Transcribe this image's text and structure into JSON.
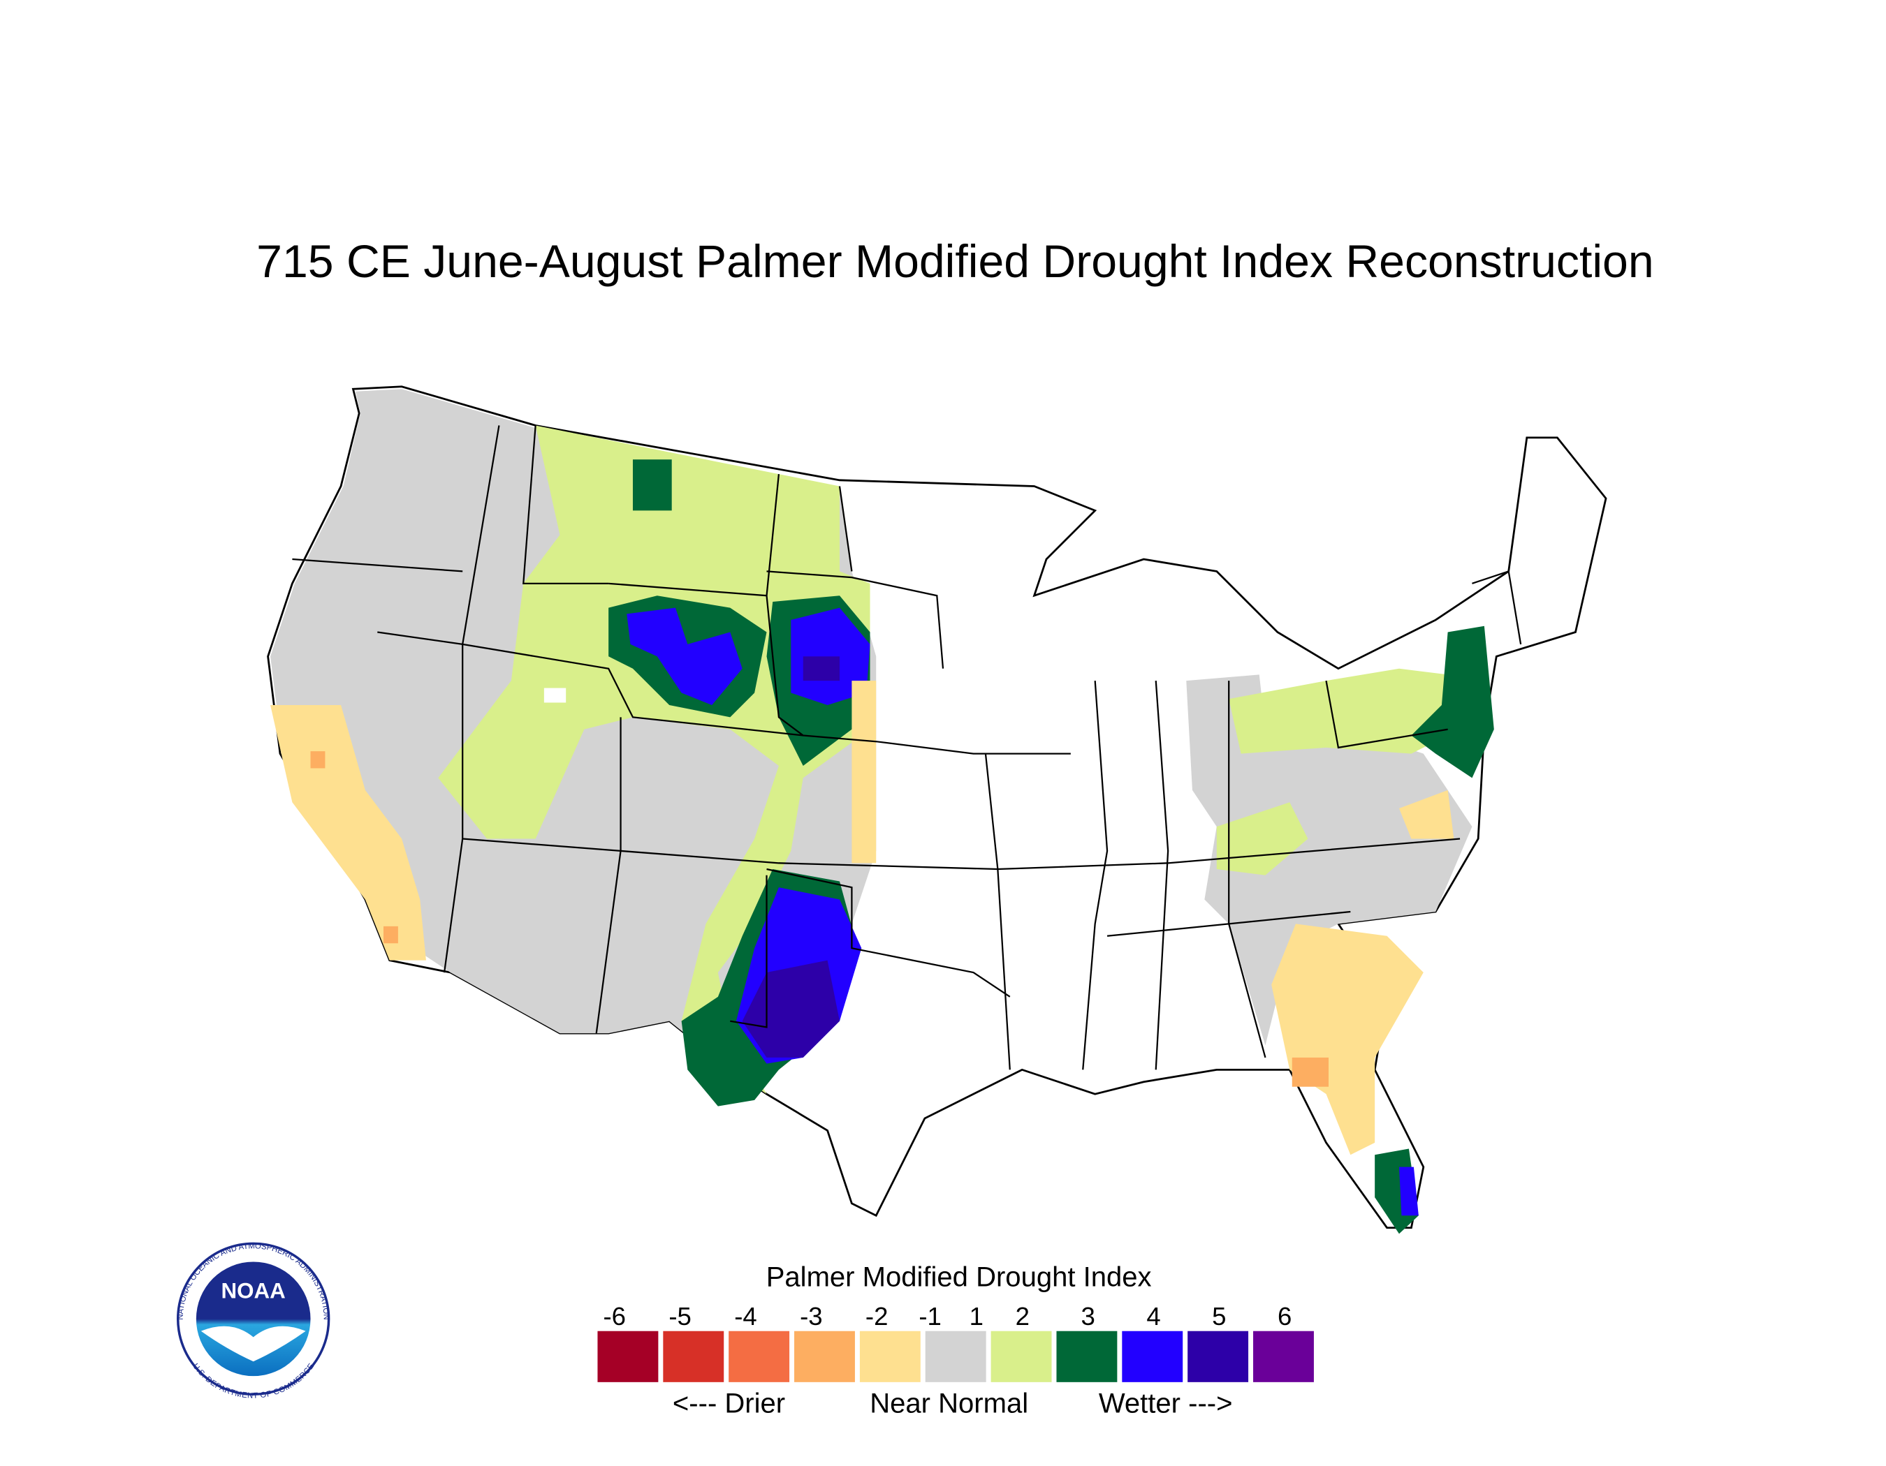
{
  "title": "715 CE  June-August  Palmer Modified Drought Index Reconstruction",
  "legend": {
    "title": "Palmer Modified Drought Index",
    "ticks": [
      -6,
      -5,
      -4,
      -3,
      -2,
      -1,
      1,
      2,
      3,
      4,
      5,
      6
    ],
    "colors": [
      "#a50026",
      "#d73027",
      "#f46d43",
      "#fdae61",
      "#fee090",
      "#d3d3d3",
      "#d9ef8b",
      "#006837",
      "#2200ff",
      "#2d00a8",
      "#6a0099"
    ],
    "drier": "<--- Drier",
    "normal": "Near Normal",
    "wetter": "Wetter --->"
  },
  "logo": {
    "name": "NOAA",
    "ring_top": "NATIONAL OCEANIC AND ATMOSPHERIC ADMINISTRATION",
    "ring_bottom": "U.S. DEPARTMENT OF COMMERCE"
  }
}
